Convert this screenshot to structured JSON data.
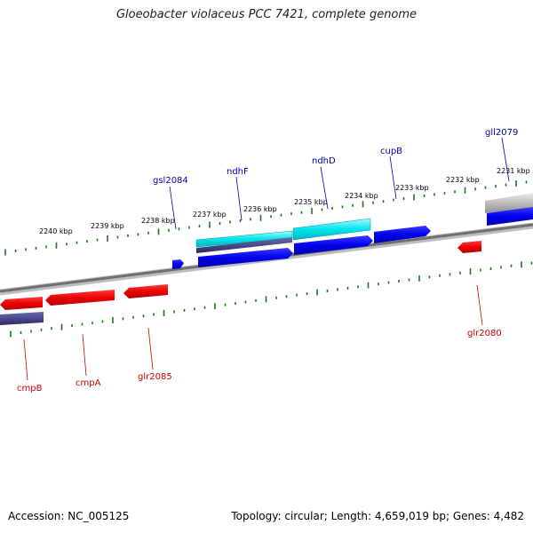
{
  "title": "Gloeobacter violaceus PCC 7421, complete genome",
  "footer": {
    "accession": "Accession: NC_005125",
    "summary": "Topology: circular; Length: 4,659,019 bp; Genes: 4,482"
  },
  "colors": {
    "forward_gene": "#0000ee",
    "reverse_gene": "#ee0000",
    "cds_cyan": "#00e5ee",
    "cds_navy": "#4a4a8c",
    "cds_gray": "#bbbbbb",
    "backbone": "#777777",
    "tick": "#1a7a1a",
    "forward_label": "#0000aa",
    "reverse_label": "#cc0000"
  },
  "kbp_ticks": [
    "2240 kbp",
    "2239 kbp",
    "2238 kbp",
    "2237 kbp",
    "2236 kbp",
    "2235 kbp",
    "2234 kbp",
    "2233 kbp",
    "2232 kbp",
    "2231 kbp"
  ],
  "forward_genes": [
    "gsl2084",
    "ndhF",
    "ndhD",
    "cupB",
    "gll2079"
  ],
  "reverse_genes": [
    "cmpB",
    "cmpA",
    "glr2085",
    "glr2080"
  ]
}
